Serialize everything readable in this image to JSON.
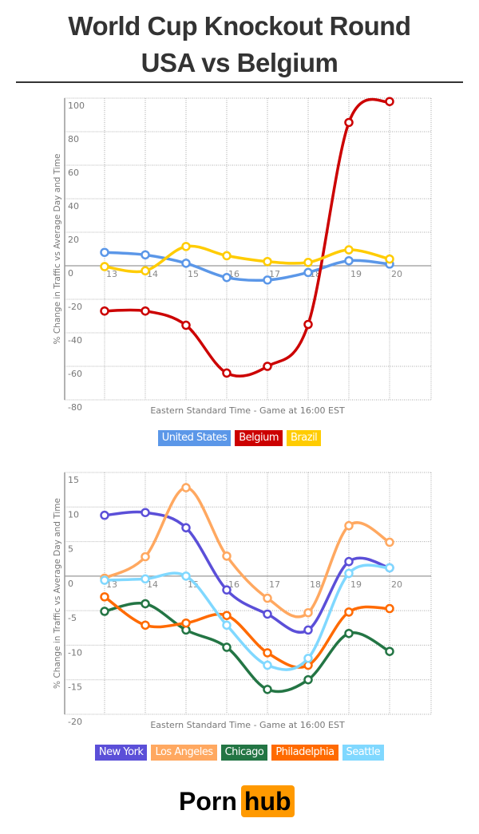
{
  "header": {
    "title_line1": "World Cup Knockout Round",
    "title_line2": "USA vs Belgium"
  },
  "logo": {
    "part1": "Porn",
    "part2": "hub",
    "accent": "#ff9900"
  },
  "chart_data": [
    {
      "type": "line",
      "ylabel": "% Change in Traffic vs Average Day and Time",
      "xlabel": "Eastern Standard Time - Game at 16:00 EST",
      "x": [
        13,
        14,
        15,
        16,
        17,
        18,
        19,
        20
      ],
      "yticks": [
        100,
        80,
        60,
        40,
        20,
        0,
        -20,
        -40,
        -60,
        -80
      ],
      "ylim": [
        -80,
        100
      ],
      "grid": true,
      "legend": "bottom",
      "series": [
        {
          "name": "United States",
          "color": "#5b97e8",
          "values": [
            8,
            6.5,
            1.5,
            -7,
            -8.5,
            -4,
            3,
            1
          ]
        },
        {
          "name": "Belgium",
          "color": "#cc0000",
          "values": [
            -27,
            -27,
            -35.5,
            -64,
            -60,
            -35,
            85.5,
            98
          ]
        },
        {
          "name": "Brazil",
          "color": "#ffcc00",
          "values": [
            -0.5,
            -3,
            11.5,
            6,
            2.5,
            2,
            9.5,
            4
          ]
        }
      ]
    },
    {
      "type": "line",
      "ylabel": "% Change in Traffic vs Average Day and Time",
      "xlabel": "Eastern Standard Time - Game at 16:00 EST",
      "x": [
        13,
        14,
        15,
        16,
        17,
        18,
        19,
        20
      ],
      "yticks": [
        15,
        10,
        5,
        0,
        -5,
        -10,
        -15,
        -20
      ],
      "ylim": [
        -20,
        15
      ],
      "grid": true,
      "legend": "bottom",
      "series": [
        {
          "name": "New York",
          "color": "#5b4fd8",
          "values": [
            8.8,
            9.2,
            7,
            -2,
            -5.5,
            -7.8,
            2.1,
            1.2
          ]
        },
        {
          "name": "Los Angeles",
          "color": "#ffa860",
          "values": [
            -0.3,
            2.8,
            12.8,
            2.9,
            -3.2,
            -5.3,
            7.3,
            4.9
          ]
        },
        {
          "name": "Chicago",
          "color": "#237544",
          "values": [
            -5.1,
            -4,
            -7.8,
            -10.3,
            -16.4,
            -15,
            -8.3,
            -10.9
          ]
        },
        {
          "name": "Philadelphia",
          "color": "#ff6a00",
          "values": [
            -3,
            -7.1,
            -6.8,
            -5.7,
            -11.1,
            -12.9,
            -5.2,
            -4.7
          ]
        },
        {
          "name": "Seattle",
          "color": "#80d8ff",
          "values": [
            -0.6,
            -0.4,
            0,
            -7.1,
            -12.9,
            -11.9,
            0.4,
            1.2
          ]
        }
      ]
    }
  ]
}
